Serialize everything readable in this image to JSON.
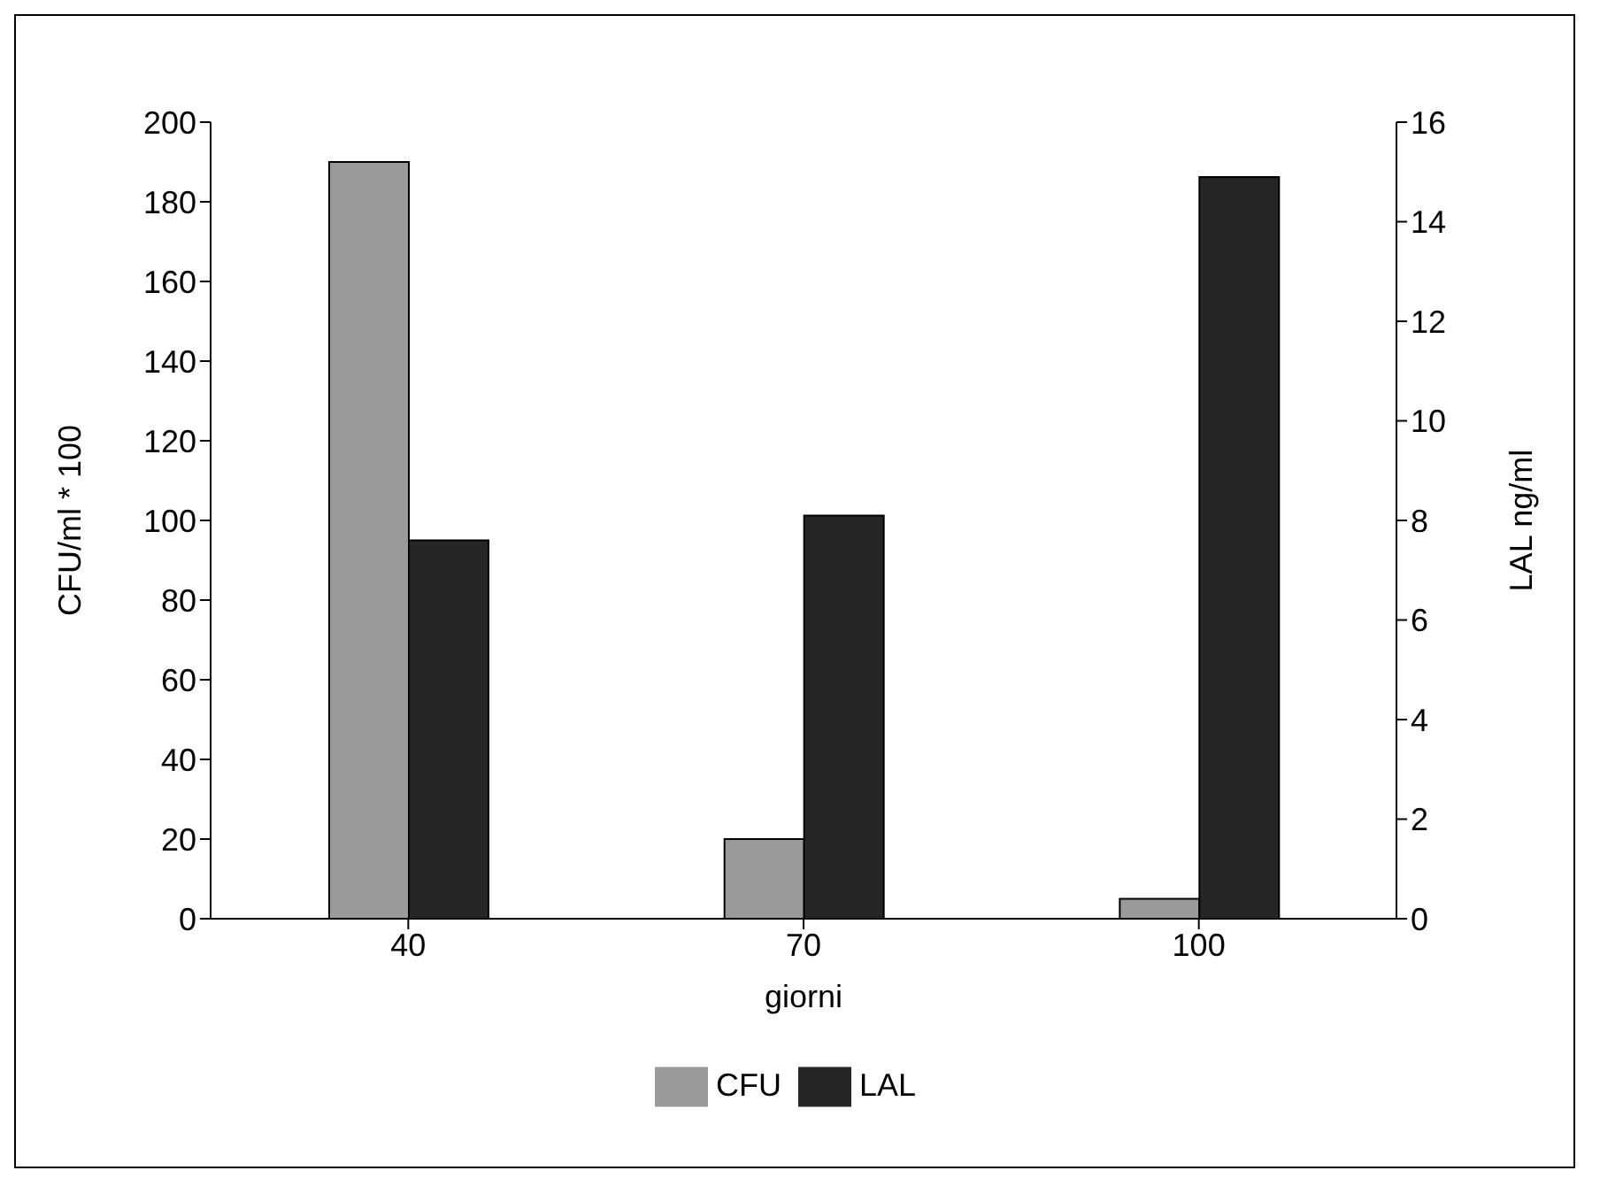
{
  "chart_data": {
    "type": "bar",
    "xlabel": "giorni",
    "ylabel": "CFU/ml * 100",
    "y2label": "LAL ng/ml",
    "categories": [
      "40",
      "70",
      "100"
    ],
    "series": [
      {
        "name": "CFU",
        "color": "#9a9a9a",
        "values": [
          190,
          20,
          5
        ]
      },
      {
        "name": "LAL",
        "color": "#262626",
        "values": [
          7.6,
          8.1,
          14.9
        ],
        "axis": "y2"
      }
    ],
    "ylim": [
      0,
      200
    ],
    "yticks": [
      0,
      20,
      40,
      60,
      80,
      100,
      120,
      140,
      160,
      180,
      200
    ],
    "y2lim": [
      0,
      16
    ],
    "y2ticks": [
      0,
      2,
      4,
      6,
      8,
      10,
      12,
      14,
      16
    ],
    "grid": false,
    "legend": "bottom"
  }
}
